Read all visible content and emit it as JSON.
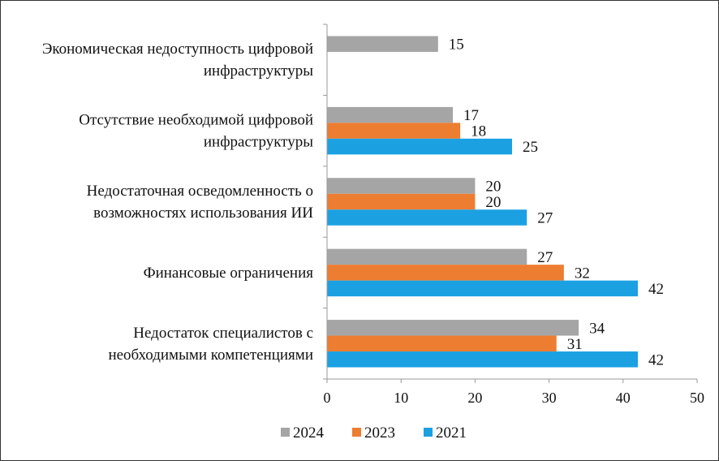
{
  "chart_data": {
    "type": "bar",
    "orientation": "horizontal",
    "categories": [
      [
        "Экономическая недоступность цифровой",
        "инфраструктуры"
      ],
      [
        "Отсутствие необходимой цифровой",
        "инфраструктуры"
      ],
      [
        "Недостаточная осведомленность о",
        "возможностях использования ИИ"
      ],
      [
        "Финансовые ограничения"
      ],
      [
        "Недостаток специалистов с",
        "необходимыми компетенциями"
      ]
    ],
    "series": [
      {
        "name": "2024",
        "color": "#a5a5a5",
        "values": [
          15,
          17,
          20,
          27,
          34
        ]
      },
      {
        "name": "2023",
        "color": "#ed7d31",
        "values": [
          null,
          18,
          20,
          32,
          31
        ]
      },
      {
        "name": "2021",
        "color": "#1ba1e2",
        "values": [
          null,
          25,
          27,
          42,
          42
        ]
      }
    ],
    "xlim": [
      0,
      50
    ],
    "xticks": [
      0,
      10,
      20,
      30,
      40,
      50
    ],
    "grid": false,
    "legend": "bottom"
  }
}
